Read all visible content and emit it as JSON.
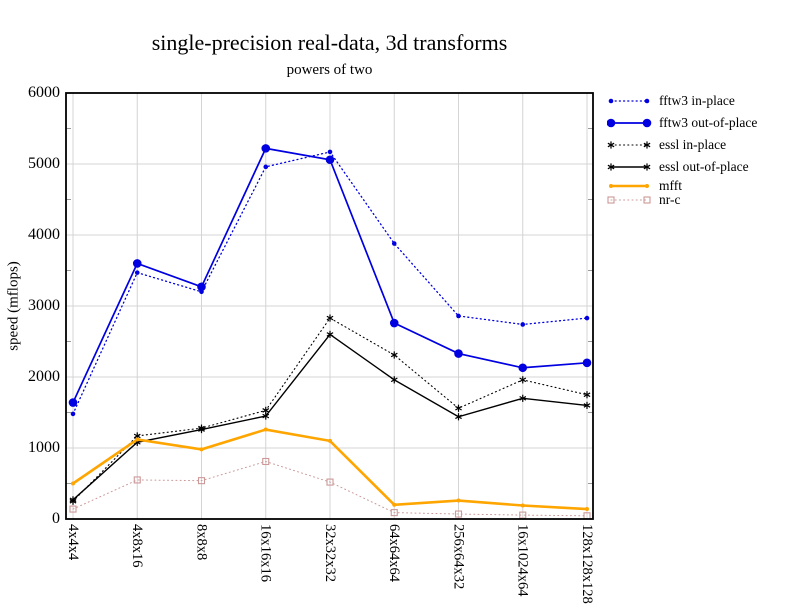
{
  "chart_data": {
    "type": "line",
    "title": "single-precision real-data, 3d transforms",
    "subtitle": "powers of two",
    "ylabel": "speed (mflops)",
    "xlabel": "",
    "ylim": [
      0,
      6000
    ],
    "y_ticks": [
      0,
      1000,
      2000,
      3000,
      4000,
      5000,
      6000
    ],
    "y_minor_tick_step": 500,
    "grid": true,
    "grid_color": "#d4d4d4",
    "legend_position": "right-outside",
    "categories": [
      "4x4x4",
      "4x8x16",
      "8x8x8",
      "16x16x16",
      "32x32x32",
      "64x64x64",
      "256x64x32",
      "16x1024x64",
      "128x128x128"
    ],
    "series": [
      {
        "name": "fftw3 in-place",
        "color": "#0000e0",
        "line": "dotted",
        "marker": "dot-small",
        "values": [
          1480,
          3470,
          3200,
          4960,
          5170,
          3880,
          2860,
          2740,
          2830
        ]
      },
      {
        "name": "fftw3 out-of-place",
        "color": "#0000e0",
        "line": "solid",
        "marker": "dot-large",
        "values": [
          1640,
          3600,
          3270,
          5220,
          5060,
          2760,
          2330,
          2130,
          2200
        ]
      },
      {
        "name": "essl in-place",
        "color": "#000000",
        "line": "dotted",
        "marker": "asterisk",
        "values": [
          250,
          1170,
          1280,
          1530,
          2830,
          2310,
          1560,
          1960,
          1750
        ]
      },
      {
        "name": "essl out-of-place",
        "color": "#000000",
        "line": "solid",
        "marker": "asterisk",
        "values": [
          270,
          1080,
          1260,
          1450,
          2600,
          1960,
          1440,
          1700,
          1600
        ]
      },
      {
        "name": "mfft",
        "color": "#ffa500",
        "line": "solid-thick",
        "marker": "dot-tiny",
        "values": [
          500,
          1120,
          980,
          1260,
          1100,
          200,
          260,
          190,
          140
        ]
      },
      {
        "name": "nr-c",
        "color": "#cc9898",
        "line": "dotted",
        "marker": "square-open",
        "values": [
          140,
          550,
          540,
          810,
          520,
          90,
          70,
          55,
          45
        ]
      }
    ]
  }
}
